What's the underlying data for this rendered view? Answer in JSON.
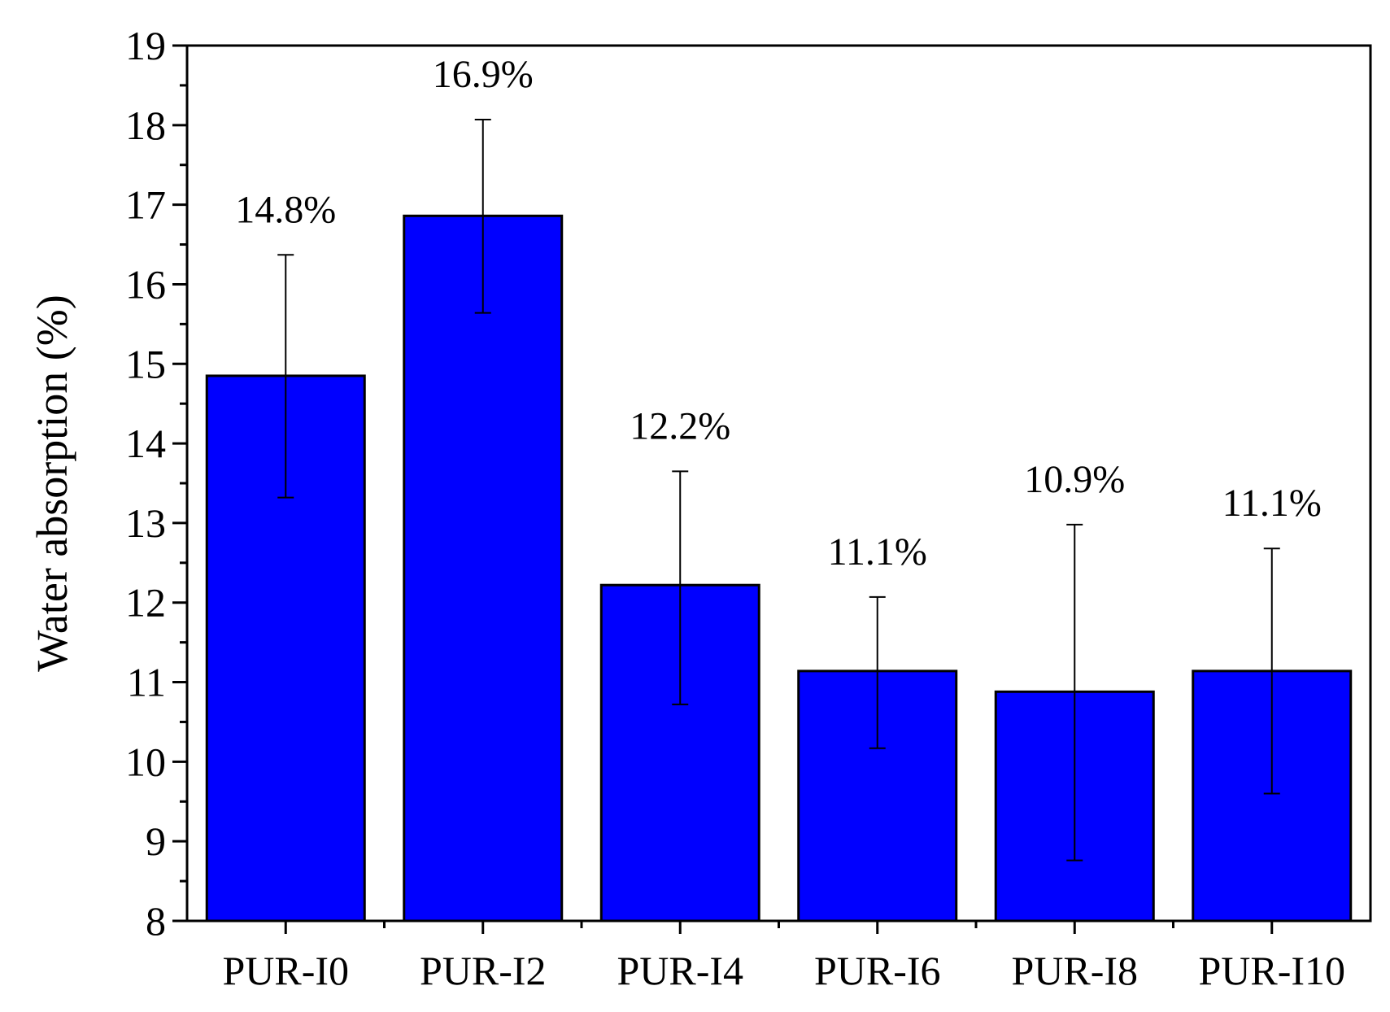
{
  "chart_data": {
    "type": "bar",
    "title": "",
    "xlabel": "",
    "ylabel": "Water absorption (%)",
    "ylim": [
      8,
      19
    ],
    "yticks": [
      8,
      9,
      10,
      11,
      12,
      13,
      14,
      15,
      16,
      17,
      18,
      19
    ],
    "grid": false,
    "legend": "none",
    "bar_color": "#0000ff",
    "categories": [
      "PUR-I0",
      "PUR-I2",
      "PUR-I4",
      "PUR-I6",
      "PUR-I8",
      "PUR-I10"
    ],
    "values": [
      14.85,
      16.86,
      12.22,
      11.14,
      10.88,
      11.14
    ],
    "error_low": [
      13.32,
      15.64,
      10.72,
      10.17,
      8.76,
      9.6
    ],
    "error_high": [
      16.37,
      18.07,
      13.65,
      12.07,
      12.98,
      12.68
    ],
    "data_labels": [
      "14.8%",
      "16.9%",
      "12.2%",
      "11.1%",
      "10.9%",
      "11.1%"
    ]
  }
}
